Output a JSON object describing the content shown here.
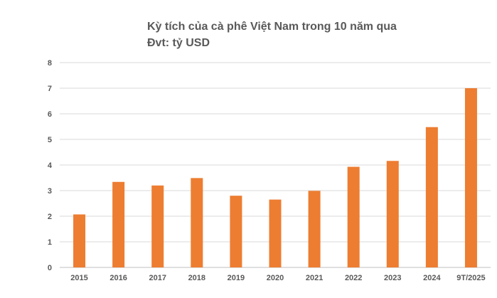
{
  "chart_data": {
    "type": "bar",
    "title": "Kỳ tích của cà phê Việt Nam trong 10 năm qua",
    "subtitle": "Đvt: tỷ USD",
    "categories": [
      "2015",
      "2016",
      "2017",
      "2018",
      "2019",
      "2020",
      "2021",
      "2022",
      "2023",
      "2024",
      "9T/2025"
    ],
    "values": [
      2.07,
      3.34,
      3.2,
      3.49,
      2.8,
      2.65,
      2.99,
      3.93,
      4.16,
      5.48,
      7.0
    ],
    "ylim": [
      0,
      8
    ],
    "yticks": [
      0,
      1,
      2,
      3,
      4,
      5,
      6,
      7,
      8
    ],
    "xlabel": "",
    "ylabel": "",
    "bar_color": "#ED7D31",
    "grid": true
  }
}
